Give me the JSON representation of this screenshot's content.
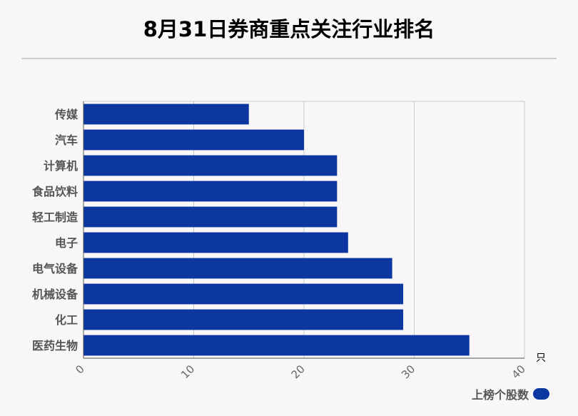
{
  "chart_data": {
    "type": "bar",
    "orientation": "horizontal",
    "title": "8月31日券商重点关注行业排名",
    "categories": [
      "传媒",
      "汽车",
      "计算机",
      "食品饮料",
      "轻工制造",
      "电子",
      "电气设备",
      "机械设备",
      "化工",
      "医药生物"
    ],
    "series": [
      {
        "name": "上榜个股数",
        "values": [
          15,
          20,
          23,
          23,
          23,
          24,
          28,
          29,
          29,
          35
        ]
      }
    ],
    "xlim": [
      0,
      40
    ],
    "xticks": [
      0,
      10,
      20,
      30,
      40
    ],
    "xunit": "只",
    "grid": true,
    "legend_position": "bottom-right",
    "colors": {
      "bar": "#0c37a0",
      "grid": "#cccccc",
      "axis": "#555555"
    }
  }
}
